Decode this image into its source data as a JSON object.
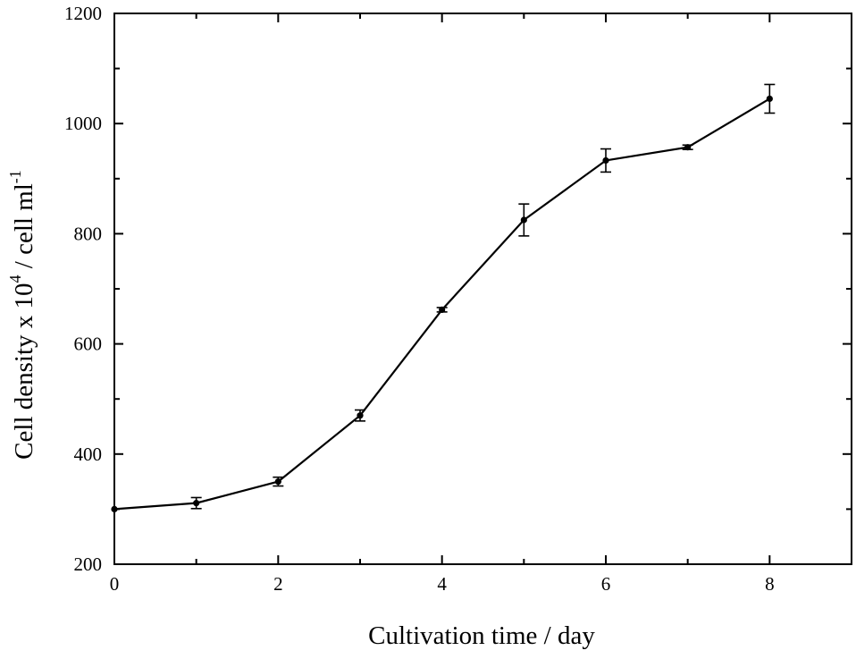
{
  "chart_data": {
    "type": "line",
    "title": "",
    "xlabel": "Cultivation time / day",
    "ylabel": {
      "pre": "Cell density x 10",
      "sup1": "4",
      "mid": " / cell ml",
      "sup2": "-1"
    },
    "xlim": [
      0,
      9
    ],
    "ylim": [
      200,
      1200
    ],
    "xticks": [
      0,
      2,
      4,
      6,
      8
    ],
    "xticks_minor": [
      1,
      3,
      5,
      7,
      9
    ],
    "yticks": [
      200,
      400,
      600,
      800,
      1000,
      1200
    ],
    "yticks_minor": [
      300,
      500,
      700,
      900,
      1100
    ],
    "grid": false,
    "series": [
      {
        "x": [
          0,
          1,
          2,
          3,
          4,
          5,
          6,
          7,
          8
        ],
        "y": [
          300,
          311,
          350,
          470,
          662,
          825,
          933,
          957,
          1045
        ],
        "error": [
          0,
          10,
          8,
          10,
          4,
          29,
          21,
          4,
          26
        ],
        "color": "#000000",
        "marker": "circle"
      }
    ]
  }
}
